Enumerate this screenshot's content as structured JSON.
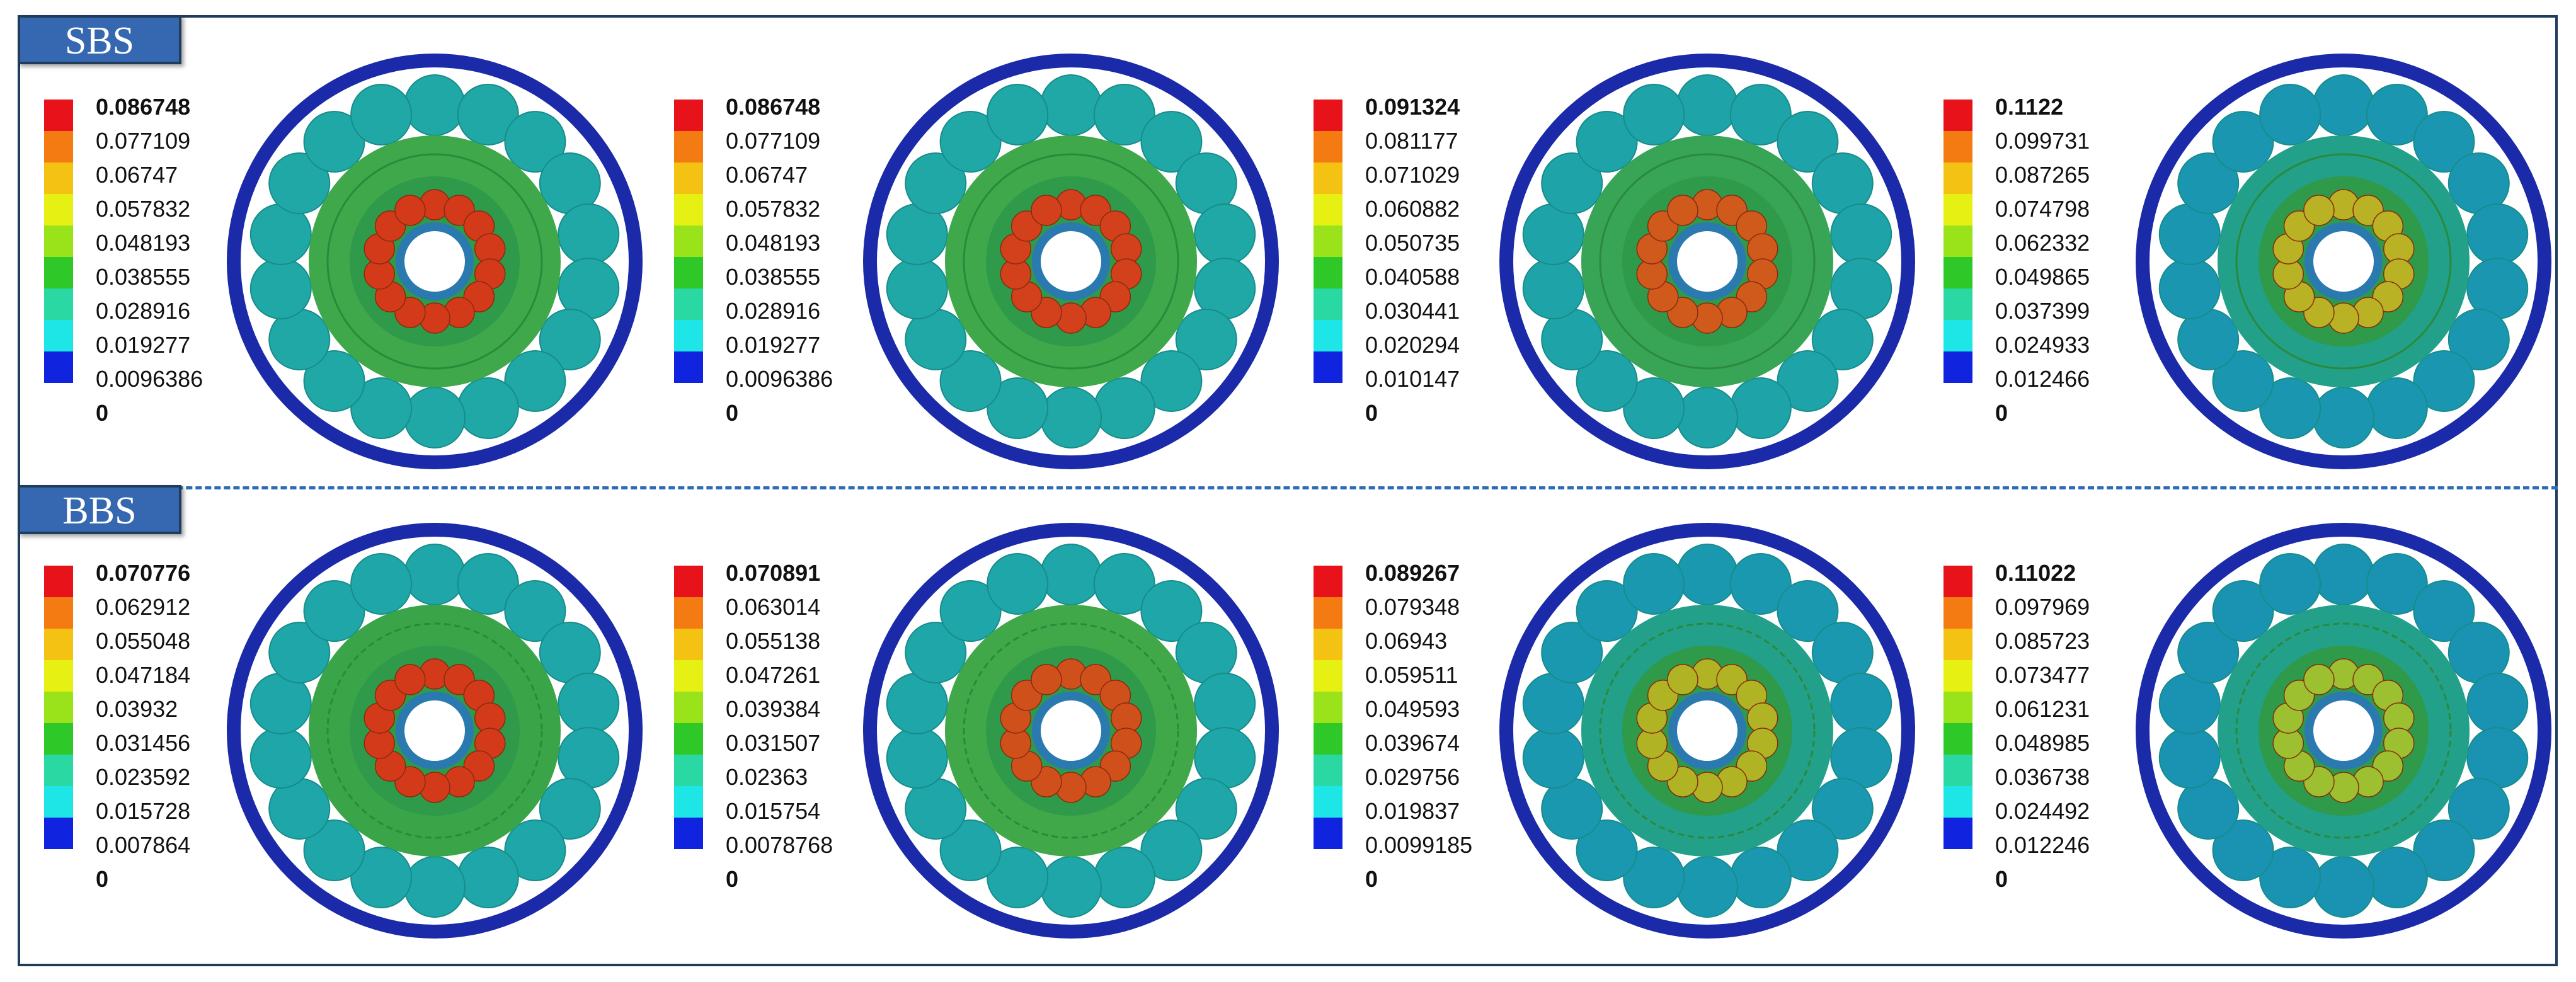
{
  "rows": [
    {
      "label": "SBS",
      "panels": [
        {
          "legend": [
            "0.086748",
            "0.077109",
            "0.06747",
            "0.057832",
            "0.048193",
            "0.038555",
            "0.028916",
            "0.019277",
            "0.0096386",
            "0"
          ],
          "outer_ball_color": "#20a8a6",
          "inner_ring_color": "#3ea84a",
          "inner_ball_color": "#d23a1a"
        },
        {
          "legend": [
            "0.086748",
            "0.077109",
            "0.06747",
            "0.057832",
            "0.048193",
            "0.038555",
            "0.028916",
            "0.019277",
            "0.0096386",
            "0"
          ],
          "outer_ball_color": "#20a8a6",
          "inner_ring_color": "#3ea84a",
          "inner_ball_color": "#d2401c"
        },
        {
          "legend": [
            "0.091324",
            "0.081177",
            "0.071029",
            "0.060882",
            "0.050735",
            "0.040588",
            "0.030441",
            "0.020294",
            "0.010147",
            "0"
          ],
          "outer_ball_color": "#1ea3a8",
          "inner_ring_color": "#38a456",
          "inner_ball_color": "#cf5a1c"
        },
        {
          "legend": [
            "0.1122",
            "0.099731",
            "0.087265",
            "0.074798",
            "0.062332",
            "0.049865",
            "0.037399",
            "0.024933",
            "0.012466",
            "0"
          ],
          "outer_ball_color": "#1a96b0",
          "inner_ring_color": "#22a08a",
          "inner_ball_color": "#b8b224"
        }
      ]
    },
    {
      "label": "BBS",
      "panels": [
        {
          "legend": [
            "0.070776",
            "0.062912",
            "0.055048",
            "0.047184",
            "0.03932",
            "0.031456",
            "0.023592",
            "0.015728",
            "0.007864",
            "0"
          ],
          "outer_ball_color": "#1ea6a8",
          "inner_ring_color": "#3aa448",
          "inner_ball_color": "#d23a1a"
        },
        {
          "legend": [
            "0.070891",
            "0.063014",
            "0.055138",
            "0.047261",
            "0.039384",
            "0.031507",
            "0.02363",
            "0.015754",
            "0.0078768",
            "0"
          ],
          "outer_ball_color": "#1ea6a8",
          "inner_ring_color": "#40a848",
          "inner_ball_color": "#d0501c"
        },
        {
          "legend": [
            "0.089267",
            "0.079348",
            "0.06943",
            "0.059511",
            "0.049593",
            "0.039674",
            "0.029756",
            "0.019837",
            "0.0099185",
            "0"
          ],
          "outer_ball_color": "#1a98b0",
          "inner_ring_color": "#22a08a",
          "inner_ball_color": "#b0b424"
        },
        {
          "legend": [
            "0.11022",
            "0.097969",
            "0.085723",
            "0.073477",
            "0.061231",
            "0.048985",
            "0.036738",
            "0.024492",
            "0.012246",
            "0"
          ],
          "outer_ball_color": "#1a92b2",
          "inner_ring_color": "#22a08a",
          "inner_ball_color": "#9cc030"
        }
      ]
    }
  ],
  "colormap": [
    "#e8121a",
    "#f47a12",
    "#f4c212",
    "#e6f012",
    "#9ae21a",
    "#2ec828",
    "#2ad8a4",
    "#1ee6e6",
    "#1aa6ea",
    "#1024e0"
  ],
  "outer_ring_color": "#1a2aa8"
}
